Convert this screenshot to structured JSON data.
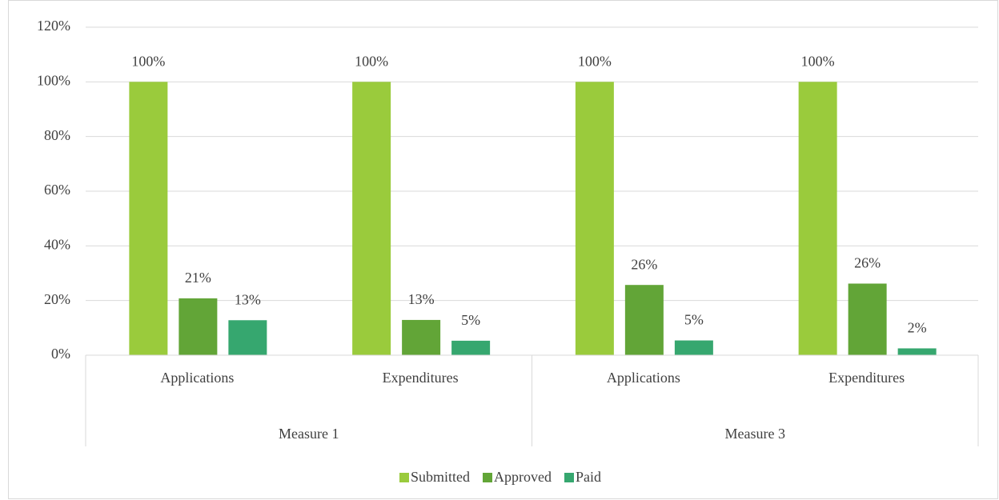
{
  "chart_data": {
    "type": "bar",
    "groups": [
      {
        "name": "Measure 1",
        "categories": [
          "Applications",
          "Expenditures"
        ]
      },
      {
        "name": "Measure 3",
        "categories": [
          "Applications",
          "Expenditures"
        ]
      }
    ],
    "series": [
      {
        "name": "Submitted",
        "color": "#9acb3c",
        "values": [
          100,
          100,
          100,
          100
        ],
        "value_labels": [
          "100%",
          "100%",
          "100%",
          "100%"
        ]
      },
      {
        "name": "Approved",
        "color": "#62a537",
        "values": [
          20.8,
          12.9,
          25.7,
          26.2
        ],
        "value_labels": [
          "21%",
          "13%",
          "26%",
          "26%"
        ]
      },
      {
        "name": "Paid",
        "color": "#36a76f",
        "values": [
          12.8,
          5.3,
          5.4,
          2.5
        ],
        "value_labels": [
          "13%",
          "5%",
          "5%",
          "2%"
        ]
      }
    ],
    "ylim": [
      0,
      120
    ],
    "yticks": [
      {
        "value": 0,
        "label": "0%"
      },
      {
        "value": 20,
        "label": "20%"
      },
      {
        "value": 40,
        "label": "40%"
      },
      {
        "value": 60,
        "label": "60%"
      },
      {
        "value": 80,
        "label": "80%"
      },
      {
        "value": 100,
        "label": "100%"
      },
      {
        "value": 120,
        "label": "120%"
      }
    ],
    "grid": true,
    "legend": "bottom"
  }
}
